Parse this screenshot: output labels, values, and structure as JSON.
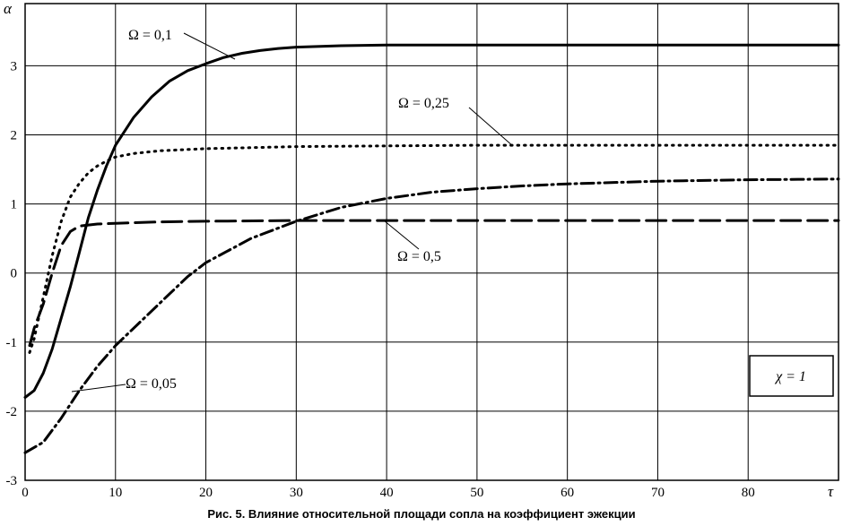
{
  "caption": "Рис. 5. Влияние относительной площади сопла на коэффициент эжекции",
  "chart_data": {
    "type": "line",
    "title": "",
    "xlabel": "τ",
    "ylabel": "α",
    "xlim": [
      0,
      90
    ],
    "ylim": [
      -3,
      3.9
    ],
    "xticks": [
      0,
      10,
      20,
      30,
      40,
      50,
      60,
      70,
      80
    ],
    "yticks": [
      -3,
      -2,
      -1,
      0,
      1,
      2,
      3
    ],
    "grid": true,
    "box_label": "χ = 1",
    "series": [
      {
        "name": "Ω = 0,1",
        "style": "solid",
        "x": [
          0,
          1,
          2,
          3,
          4,
          5,
          6,
          7,
          8,
          9,
          10,
          12,
          14,
          16,
          18,
          20,
          22,
          24,
          26,
          28,
          30,
          35,
          40,
          50,
          60,
          70,
          80,
          90
        ],
        "y": [
          -1.8,
          -1.7,
          -1.45,
          -1.1,
          -0.65,
          -0.2,
          0.3,
          0.8,
          1.2,
          1.55,
          1.85,
          2.25,
          2.55,
          2.78,
          2.93,
          3.03,
          3.12,
          3.18,
          3.22,
          3.25,
          3.27,
          3.29,
          3.3,
          3.3,
          3.3,
          3.3,
          3.3,
          3.3
        ]
      },
      {
        "name": "Ω = 0,25",
        "style": "dotted",
        "x": [
          0.5,
          1,
          2,
          3,
          4,
          5,
          6,
          7,
          8,
          9,
          10,
          12,
          15,
          20,
          30,
          40,
          50,
          60,
          70,
          80,
          90
        ],
        "y": [
          -1.15,
          -0.95,
          -0.35,
          0.25,
          0.75,
          1.1,
          1.3,
          1.45,
          1.55,
          1.62,
          1.68,
          1.73,
          1.77,
          1.8,
          1.83,
          1.84,
          1.85,
          1.85,
          1.85,
          1.85,
          1.85
        ]
      },
      {
        "name": "Ω = 0,5",
        "style": "dashed",
        "x": [
          0.5,
          1,
          2,
          3,
          4,
          5,
          6,
          8,
          10,
          15,
          20,
          30,
          40,
          50,
          60,
          70,
          80,
          90
        ],
        "y": [
          -1.05,
          -0.8,
          -0.45,
          0.0,
          0.4,
          0.6,
          0.68,
          0.71,
          0.72,
          0.74,
          0.75,
          0.76,
          0.76,
          0.76,
          0.76,
          0.76,
          0.76,
          0.76
        ]
      },
      {
        "name": "Ω = 0,05",
        "style": "dashdot",
        "x": [
          0,
          2,
          4,
          6,
          8,
          10,
          12,
          14,
          16,
          18,
          20,
          25,
          30,
          35,
          40,
          45,
          50,
          55,
          60,
          70,
          80,
          90
        ],
        "y": [
          -2.6,
          -2.45,
          -2.1,
          -1.7,
          -1.35,
          -1.05,
          -0.8,
          -0.55,
          -0.3,
          -0.05,
          0.15,
          0.5,
          0.75,
          0.95,
          1.08,
          1.17,
          1.22,
          1.26,
          1.29,
          1.33,
          1.35,
          1.36
        ]
      }
    ]
  }
}
